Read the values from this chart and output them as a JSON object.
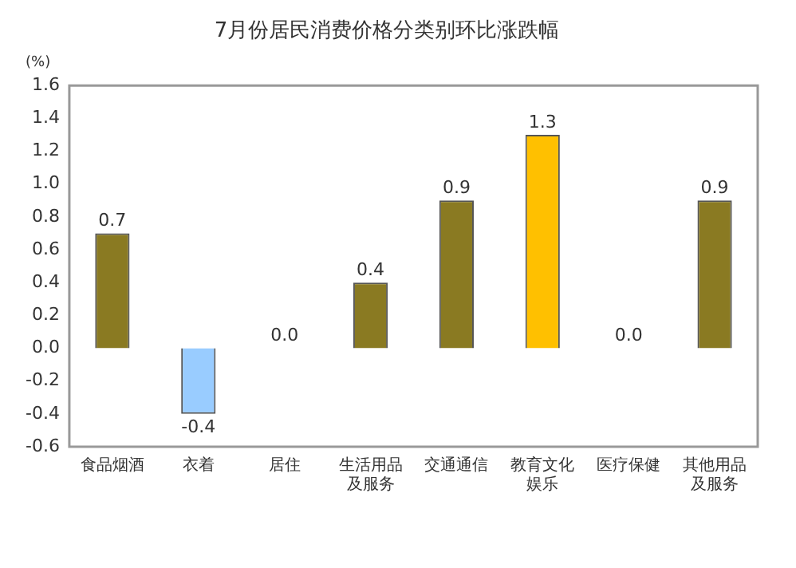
{
  "chart_data": {
    "type": "bar",
    "title": "7月份居民消费价格分类别环比涨跌幅",
    "ylabel": "(%)",
    "categories": [
      "食品烟酒",
      "衣着",
      "居住",
      "生活用品及服务",
      "交通通信",
      "教育文化娱乐",
      "医疗保健",
      "其他用品及服务"
    ],
    "values": [
      0.7,
      -0.4,
      0.0,
      0.4,
      0.9,
      1.3,
      0.0,
      0.9
    ],
    "value_labels": [
      "0.7",
      "-0.4",
      "0.0",
      "0.4",
      "0.9",
      "1.3",
      "0.0",
      "0.9"
    ],
    "colors": [
      "#8a7a22",
      "#99ccff",
      "#8a7a22",
      "#8a7a22",
      "#8a7a22",
      "#ffc000",
      "#8a7a22",
      "#8a7a22"
    ],
    "ylim": [
      -0.6,
      1.6
    ],
    "yticks": [
      -0.6,
      -0.4,
      -0.2,
      {
        "value": 0,
        "label": "0.0"
      },
      0.2,
      0.4,
      0.6,
      0.8,
      {
        "value": 1,
        "label": "1.0"
      },
      1.2,
      1.4,
      1.6
    ],
    "grid": false,
    "legend": false
  }
}
